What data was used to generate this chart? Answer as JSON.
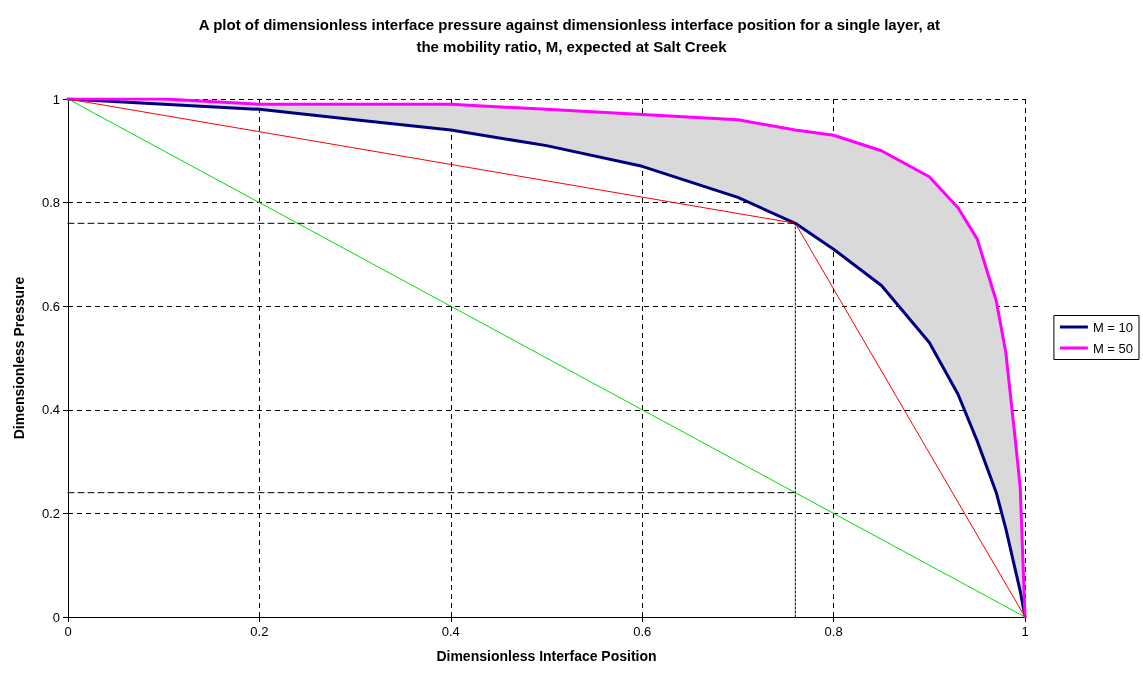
{
  "chart_data": {
    "type": "line",
    "title": "A plot of dimensionless interface pressure against dimensionless interface position for a single layer, at the mobility ratio, M, expected at Salt Creek",
    "xlabel": "Dimensionless Interface Position",
    "ylabel": "Dimensionless Pressure",
    "xlim": [
      0,
      1
    ],
    "ylim": [
      0,
      1
    ],
    "xticks": [
      0,
      0.2,
      0.4,
      0.6,
      0.8,
      1
    ],
    "yticks": [
      0,
      0.2,
      0.4,
      0.6,
      0.8,
      1
    ],
    "grid": true,
    "legend": "right",
    "marker": "none",
    "line_style": "solid",
    "series": [
      {
        "color": "#00dd00",
        "x": [
          0,
          1
        ],
        "values": [
          1,
          0
        ]
      },
      {
        "color": "#ff0000",
        "x": [
          0,
          0.76,
          1
        ],
        "values": [
          1,
          0.76,
          0
        ]
      },
      {
        "color": "#000000",
        "line_style": "dashed",
        "x": [
          0,
          0.76
        ],
        "values": [
          0.76,
          0.76
        ]
      },
      {
        "color": "#000000",
        "line_style": "dashed",
        "x": [
          0,
          0.76
        ],
        "values": [
          0.24,
          0.24
        ]
      },
      {
        "color": "#000000",
        "line_style": "dotted",
        "x": [
          0.76,
          0.76
        ],
        "values": [
          0,
          0.76
        ]
      },
      {
        "name": "M = 10",
        "color": "#000080",
        "x": [
          0,
          0.1,
          0.2,
          0.3,
          0.4,
          0.5,
          0.6,
          0.7,
          0.76,
          0.8,
          0.85,
          0.9,
          0.93,
          0.95,
          0.97,
          0.98,
          0.99,
          0.995,
          1
        ],
        "values": [
          1,
          0.99,
          0.98,
          0.96,
          0.94,
          0.91,
          0.87,
          0.81,
          0.76,
          0.71,
          0.64,
          0.53,
          0.43,
          0.34,
          0.24,
          0.17,
          0.09,
          0.05,
          0
        ]
      },
      {
        "name": "M = 50",
        "color": "#ff00ff",
        "x": [
          0,
          0.1,
          0.2,
          0.3,
          0.4,
          0.5,
          0.6,
          0.7,
          0.76,
          0.8,
          0.85,
          0.9,
          0.93,
          0.95,
          0.97,
          0.98,
          0.99,
          0.995,
          1
        ],
        "values": [
          1,
          1,
          0.99,
          0.99,
          0.99,
          0.98,
          0.97,
          0.96,
          0.94,
          0.93,
          0.9,
          0.85,
          0.79,
          0.73,
          0.61,
          0.51,
          0.34,
          0.25,
          0
        ],
        "lower": [
          1,
          0.99,
          0.98,
          0.96,
          0.94,
          0.91,
          0.87,
          0.81,
          0.76,
          0.71,
          0.64,
          0.53,
          0.43,
          0.34,
          0.24,
          0.17,
          0.09,
          0.05,
          0
        ],
        "upper": [
          1,
          1,
          0.99,
          0.99,
          0.99,
          0.98,
          0.97,
          0.96,
          0.94,
          0.93,
          0.9,
          0.85,
          0.79,
          0.73,
          0.61,
          0.51,
          0.34,
          0.25,
          0
        ]
      }
    ]
  }
}
